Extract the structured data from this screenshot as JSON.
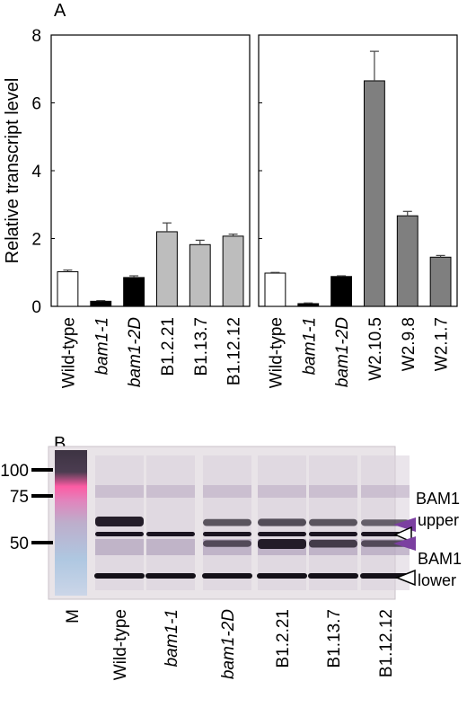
{
  "panel_a": {
    "label": "A",
    "ylabel": "Relative transcript level",
    "yticks": [
      "0",
      "2",
      "4",
      "6",
      "8"
    ]
  },
  "panel_b": {
    "label": "B",
    "marker_labels": [
      "100",
      "75",
      "50"
    ],
    "lane_labels": [
      "M",
      "Wild-type",
      "bam1-1",
      "bam1-2D",
      "B1.2.21",
      "B1.13.7",
      "B1.12.12"
    ],
    "italic_lanes": [
      false,
      false,
      true,
      true,
      false,
      false,
      false
    ],
    "annot_upper": [
      "BAM1",
      "upper"
    ],
    "annot_lower": [
      "BAM1",
      "lower"
    ],
    "colors": {
      "purple_arrow": "#7b3fa0",
      "band": "#1a1420",
      "membrane": "#e9e4e8"
    }
  },
  "chart_data": [
    {
      "type": "bar",
      "categories": [
        "Wild-type",
        "bam1-1",
        "bam1-2D",
        "B1.2.21",
        "B1.13.7",
        "B1.12.12"
      ],
      "italic": [
        false,
        true,
        true,
        false,
        false,
        false
      ],
      "values": [
        1.02,
        0.15,
        0.85,
        2.2,
        1.82,
        2.07
      ],
      "errors": [
        0.05,
        0.02,
        0.05,
        0.26,
        0.13,
        0.06
      ],
      "colors": [
        "#ffffff",
        "#000000",
        "#000000",
        "#bdbdbd",
        "#bdbdbd",
        "#bdbdbd"
      ],
      "ylabel": "Relative transcript level",
      "ylim": [
        0,
        8
      ]
    },
    {
      "type": "bar",
      "categories": [
        "Wild-type",
        "bam1-1",
        "bam1-2D",
        "W2.10.5",
        "W2.9.8",
        "W2.1.7"
      ],
      "italic": [
        false,
        true,
        true,
        false,
        false,
        false
      ],
      "values": [
        0.98,
        0.08,
        0.88,
        6.65,
        2.67,
        1.45
      ],
      "errors": [
        0.02,
        0.02,
        0.02,
        0.87,
        0.13,
        0.05
      ],
      "colors": [
        "#ffffff",
        "#000000",
        "#000000",
        "#7f7f7f",
        "#7f7f7f",
        "#7f7f7f"
      ],
      "ylim": [
        0,
        8
      ]
    }
  ]
}
